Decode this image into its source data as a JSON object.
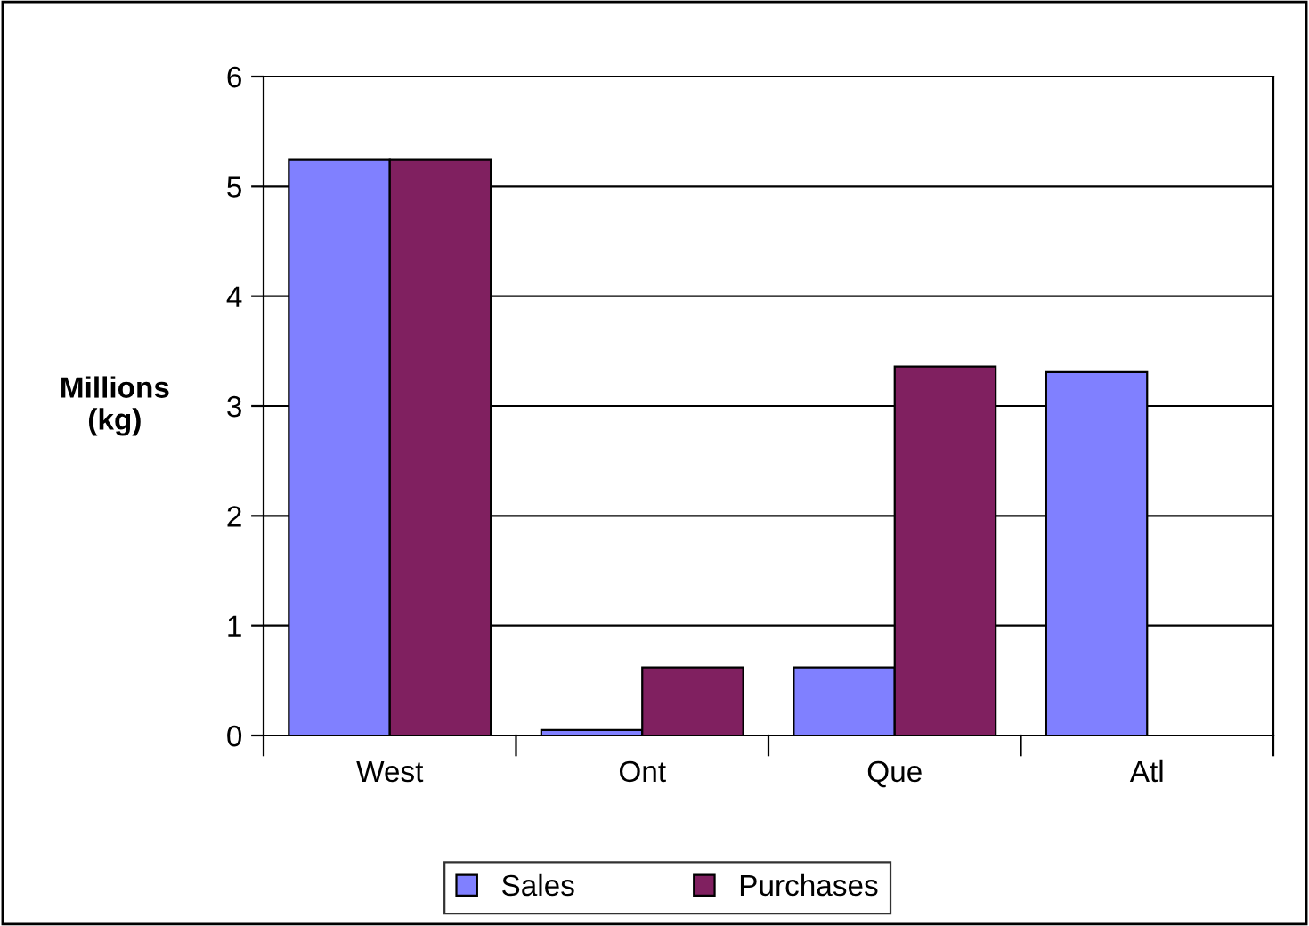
{
  "chart_data": {
    "type": "bar",
    "ylabel": "Millions\n(kg)",
    "categories": [
      "West",
      "Ont",
      "Que",
      "Atl"
    ],
    "series": [
      {
        "name": "Sales",
        "color": "#8080ff",
        "values": [
          5.24,
          0.05,
          0.62,
          3.31
        ]
      },
      {
        "name": "Purchases",
        "color": "#802060",
        "values": [
          5.24,
          0.62,
          3.36,
          null
        ]
      }
    ],
    "ylim": [
      0,
      6
    ],
    "yticks": [
      0,
      1,
      2,
      3,
      4,
      5,
      6
    ],
    "grid": "y",
    "legend": "bottom"
  }
}
